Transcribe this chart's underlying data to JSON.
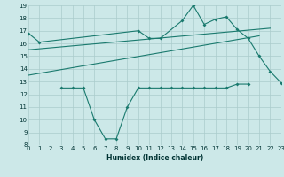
{
  "xlabel": "Humidex (Indice chaleur)",
  "bg_color": "#cce8e8",
  "grid_color": "#aacccc",
  "line_color": "#1a7a6e",
  "xmin": 0,
  "xmax": 23,
  "ymin": 8,
  "ymax": 19,
  "series": {
    "top_jagged": {
      "x": [
        0,
        1,
        10,
        11,
        12,
        14,
        15,
        16,
        17,
        18,
        19,
        20,
        21,
        22,
        23
      ],
      "y": [
        16.8,
        16.1,
        17.0,
        16.4,
        16.4,
        17.8,
        19.0,
        17.5,
        17.9,
        18.1,
        17.1,
        16.4,
        15.0,
        13.8,
        12.9
      ]
    },
    "line_upper_trend": {
      "x": [
        0,
        22
      ],
      "y": [
        15.5,
        17.2
      ]
    },
    "line_lower_trend": {
      "x": [
        0,
        21
      ],
      "y": [
        13.5,
        16.6
      ]
    },
    "bottom_jagged": {
      "x": [
        3,
        4,
        5,
        6,
        7,
        8,
        9,
        10,
        11,
        12,
        13,
        14,
        15,
        16,
        17,
        18,
        19,
        20
      ],
      "y": [
        12.5,
        12.5,
        12.5,
        10.0,
        8.5,
        8.5,
        11.0,
        12.5,
        12.5,
        12.5,
        12.5,
        12.5,
        12.5,
        12.5,
        12.5,
        12.5,
        12.8,
        12.8
      ]
    }
  }
}
